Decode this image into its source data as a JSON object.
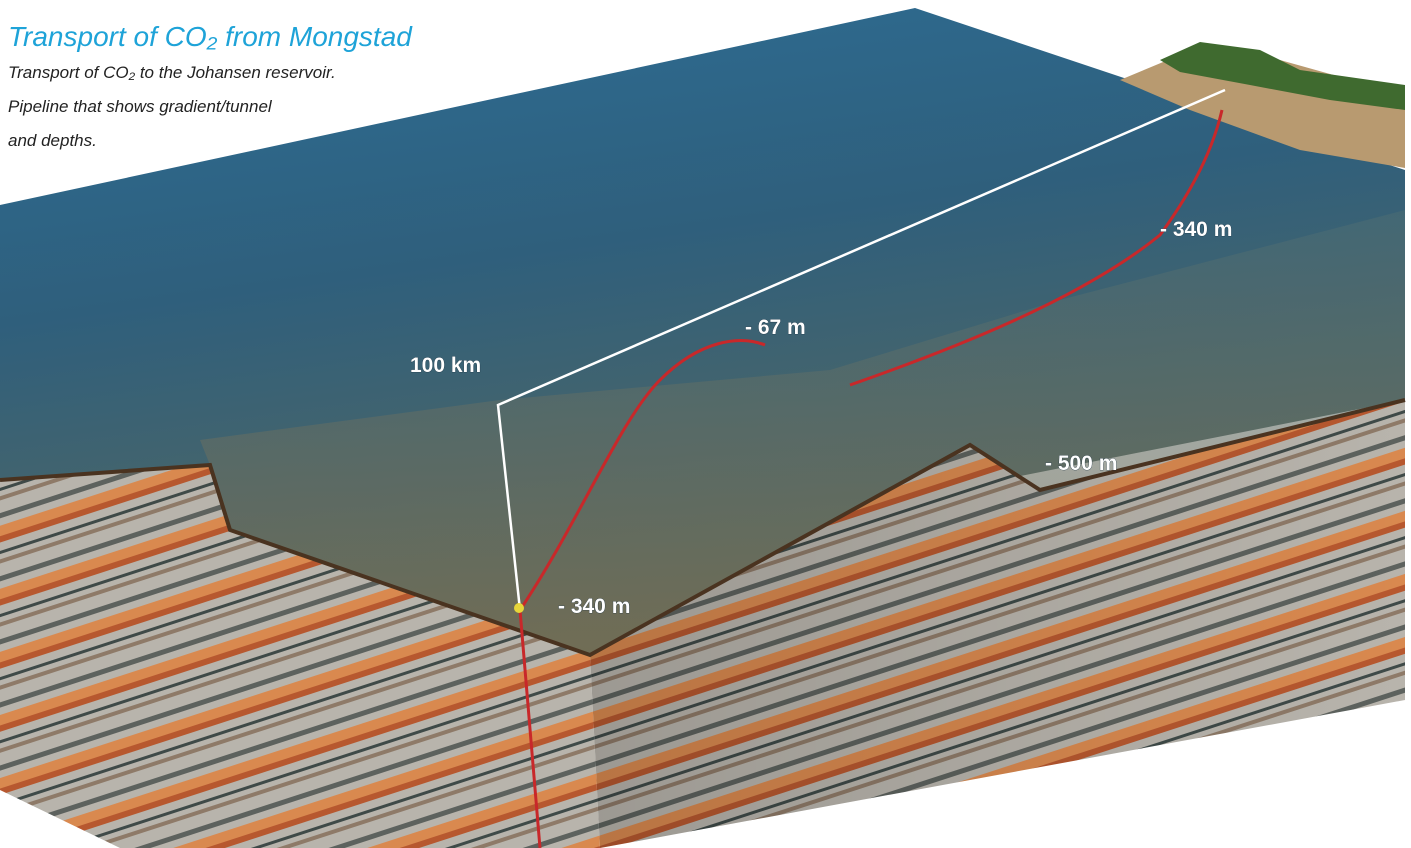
{
  "header": {
    "title": "Transport of CO₂ from Mongstad",
    "subtitle": [
      "Transport of CO₂ to the Johansen reservoir.",
      "Pipeline that shows gradient/tunnel",
      "and depths."
    ]
  },
  "labels": {
    "distance": "100 km",
    "depths": [
      "- 67 m",
      "- 340 m",
      "- 500 m",
      "- 340 m"
    ]
  }
}
